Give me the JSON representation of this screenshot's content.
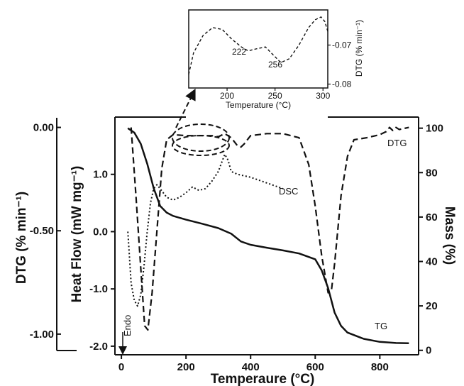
{
  "chart_data": [
    {
      "type": "line",
      "xlabel": "Temperaure (°C)",
      "x_ticks": [
        "0",
        "200",
        "400",
        "600",
        "800"
      ],
      "xlim": [
        -20,
        920
      ],
      "dtg_axis": {
        "label": "DTG (% min⁻¹)",
        "ticks": [
          "0.00",
          "-0.50",
          "-1.00"
        ],
        "ylim": [
          -1.1,
          0.05
        ]
      },
      "heatflow_axis": {
        "label": "Heat Flow (mW mg⁻¹)",
        "ticks": [
          "1.0",
          "0.0",
          "-1.0",
          "-2.0"
        ],
        "ylim": [
          -2.15,
          2.0
        ]
      },
      "mass_axis": {
        "label": "Mass (%)",
        "ticks": [
          "100",
          "80",
          "60",
          "40",
          "20",
          "0"
        ],
        "ylim": [
          -2,
          105
        ]
      },
      "endo_label": "Endo",
      "series": [
        {
          "name": "TG",
          "axis": "mass",
          "style": "solid",
          "x": [
            20,
            40,
            60,
            80,
            100,
            120,
            140,
            160,
            200,
            250,
            300,
            340,
            370,
            400,
            450,
            500,
            550,
            600,
            620,
            640,
            660,
            680,
            700,
            750,
            800,
            850,
            890
          ],
          "y": [
            100,
            98,
            93,
            84,
            73,
            65,
            62,
            60.5,
            58.8,
            57,
            55,
            52.5,
            49,
            47.5,
            46.2,
            45,
            43.6,
            41,
            36,
            28,
            17,
            11,
            8,
            5.2,
            3.8,
            3.3,
            3.2
          ]
        },
        {
          "name": "DTG",
          "axis": "dtg",
          "style": "dashed",
          "x": [
            30,
            45,
            60,
            72,
            82,
            95,
            110,
            125,
            140,
            160,
            200,
            240,
            280,
            300,
            320,
            340,
            360,
            370,
            380,
            400,
            450,
            500,
            550,
            580,
            600,
            620,
            640,
            650,
            660,
            680,
            700,
            720,
            760,
            800,
            820,
            830,
            840,
            850,
            860,
            890
          ],
          "y": [
            0.0,
            -0.33,
            -0.68,
            -0.96,
            -0.98,
            -0.8,
            -0.5,
            -0.2,
            -0.06,
            -0.035,
            -0.04,
            -0.04,
            -0.04,
            -0.045,
            -0.03,
            -0.05,
            -0.09,
            -0.095,
            -0.08,
            -0.04,
            -0.03,
            -0.03,
            -0.05,
            -0.18,
            -0.38,
            -0.62,
            -0.8,
            -0.79,
            -0.66,
            -0.33,
            -0.14,
            -0.06,
            -0.05,
            -0.035,
            -0.02,
            0.0,
            -0.015,
            0.0,
            -0.01,
            0.0
          ]
        },
        {
          "name": "DSC",
          "axis": "heatflow",
          "style": "dotted",
          "x": [
            20,
            30,
            40,
            50,
            60,
            70,
            80,
            90,
            100,
            110,
            120,
            140,
            160,
            180,
            200,
            220,
            240,
            260,
            280,
            300,
            320,
            330,
            340,
            360,
            400,
            450,
            500
          ],
          "y": [
            0.0,
            -0.9,
            -1.2,
            -1.3,
            -1.1,
            -0.6,
            0.0,
            0.5,
            0.75,
            0.82,
            0.75,
            0.6,
            0.55,
            0.6,
            0.68,
            0.78,
            0.72,
            0.75,
            0.88,
            1.05,
            1.35,
            1.25,
            1.05,
            1.0,
            0.95,
            0.85,
            0.75
          ]
        }
      ],
      "series_labels": [
        "DTG",
        "DSC",
        "TG"
      ]
    },
    {
      "type": "line",
      "xlabel": "Temperature (°C)",
      "ylabel": "DTG (% min⁻¹)",
      "x_ticks": [
        "200",
        "250",
        "300"
      ],
      "y_ticks": [
        "-0.07",
        "-0.08"
      ],
      "xlim": [
        160,
        305
      ],
      "ylim": [
        -0.081,
        -0.061
      ],
      "annotations": [
        "222",
        "256"
      ],
      "series": [
        {
          "name": "DTG",
          "style": "dashed",
          "x": [
            160,
            165,
            175,
            185,
            195,
            205,
            215,
            222,
            230,
            240,
            250,
            256,
            265,
            275,
            285,
            292,
            298,
            302,
            305
          ],
          "y": [
            -0.0775,
            -0.072,
            -0.0675,
            -0.0655,
            -0.066,
            -0.0685,
            -0.0705,
            -0.0715,
            -0.071,
            -0.0705,
            -0.073,
            -0.0745,
            -0.0735,
            -0.07,
            -0.0655,
            -0.0635,
            -0.0628,
            -0.064,
            -0.0665
          ]
        }
      ]
    }
  ]
}
